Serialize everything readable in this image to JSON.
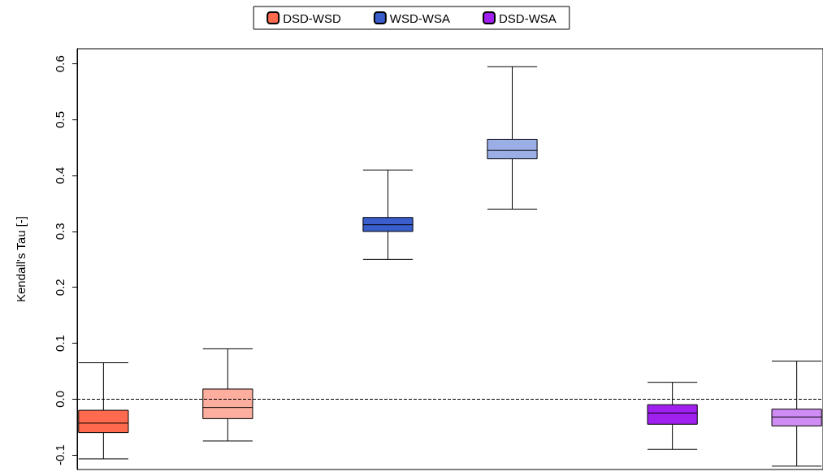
{
  "chart_data": {
    "type": "box",
    "ylabel": "Kendall's Tau [-]",
    "categories": [
      null,
      null,
      null,
      null,
      null,
      null
    ],
    "series": [
      {
        "name": "DSD-WSD",
        "color": "#fe6a4e",
        "colors": [
          "#fe6a4e",
          "#fdae9e",
          null,
          null,
          null,
          null
        ],
        "boxes": [
          {
            "low": -0.107,
            "q1": -0.06,
            "median": -0.043,
            "q3": -0.02,
            "high": 0.065
          },
          {
            "low": -0.075,
            "q1": -0.035,
            "median": -0.015,
            "q3": 0.018,
            "high": 0.09
          },
          null,
          null,
          null,
          null
        ]
      },
      {
        "name": "WSD-WSA",
        "color": "#3a5fcd",
        "colors": [
          null,
          null,
          "#3a5fcd",
          "#9baee6",
          null,
          null
        ],
        "boxes": [
          null,
          null,
          {
            "low": 0.25,
            "q1": 0.3,
            "median": 0.312,
            "q3": 0.325,
            "high": 0.41
          },
          {
            "low": 0.34,
            "q1": 0.43,
            "median": 0.445,
            "q3": 0.465,
            "high": 0.595
          },
          null,
          null
        ]
      },
      {
        "name": "DSD-WSA",
        "color": "#a020f0",
        "colors": [
          null,
          null,
          null,
          null,
          "#a020f0",
          "#d08cf5"
        ],
        "boxes": [
          null,
          null,
          null,
          null,
          {
            "low": -0.09,
            "q1": -0.045,
            "median": -0.025,
            "q3": -0.01,
            "high": 0.03
          },
          {
            "low": -0.12,
            "q1": -0.048,
            "median": -0.032,
            "q3": -0.018,
            "high": 0.068
          }
        ]
      }
    ],
    "ylim": [
      -0.126,
      0.627
    ],
    "yticks": [
      {
        "value": -0.1,
        "label": "-0.1"
      },
      {
        "value": 0,
        "label": "0.0"
      },
      0.1,
      0.2,
      0.3,
      0.4,
      0.5,
      0.6
    ],
    "ref_lines": [
      {
        "axis": "y",
        "value": 0,
        "line_style": "dashed",
        "color": "#000000"
      }
    ],
    "legend": "top",
    "grid": false
  }
}
